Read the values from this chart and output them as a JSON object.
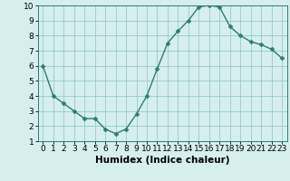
{
  "x": [
    0,
    1,
    2,
    3,
    4,
    5,
    6,
    7,
    8,
    9,
    10,
    11,
    12,
    13,
    14,
    15,
    16,
    17,
    18,
    19,
    20,
    21,
    22,
    23
  ],
  "y": [
    6.0,
    4.0,
    3.5,
    3.0,
    2.5,
    2.5,
    1.8,
    1.5,
    1.8,
    2.8,
    4.0,
    5.8,
    7.5,
    8.3,
    9.0,
    9.9,
    10.0,
    9.9,
    8.6,
    8.0,
    7.6,
    7.4,
    7.1,
    6.5
  ],
  "xlabel": "Humidex (Indice chaleur)",
  "xlim": [
    -0.5,
    23.5
  ],
  "ylim": [
    1,
    10
  ],
  "yticks": [
    1,
    2,
    3,
    4,
    5,
    6,
    7,
    8,
    9,
    10
  ],
  "xticks": [
    0,
    1,
    2,
    3,
    4,
    5,
    6,
    7,
    8,
    9,
    10,
    11,
    12,
    13,
    14,
    15,
    16,
    17,
    18,
    19,
    20,
    21,
    22,
    23
  ],
  "line_color": "#2e7d6e",
  "marker": "D",
  "marker_size": 2.5,
  "line_width": 1.0,
  "bg_color": "#d6eeee",
  "grid_color": "#89c4c4",
  "xlabel_fontsize": 7.5,
  "tick_fontsize": 6.5
}
